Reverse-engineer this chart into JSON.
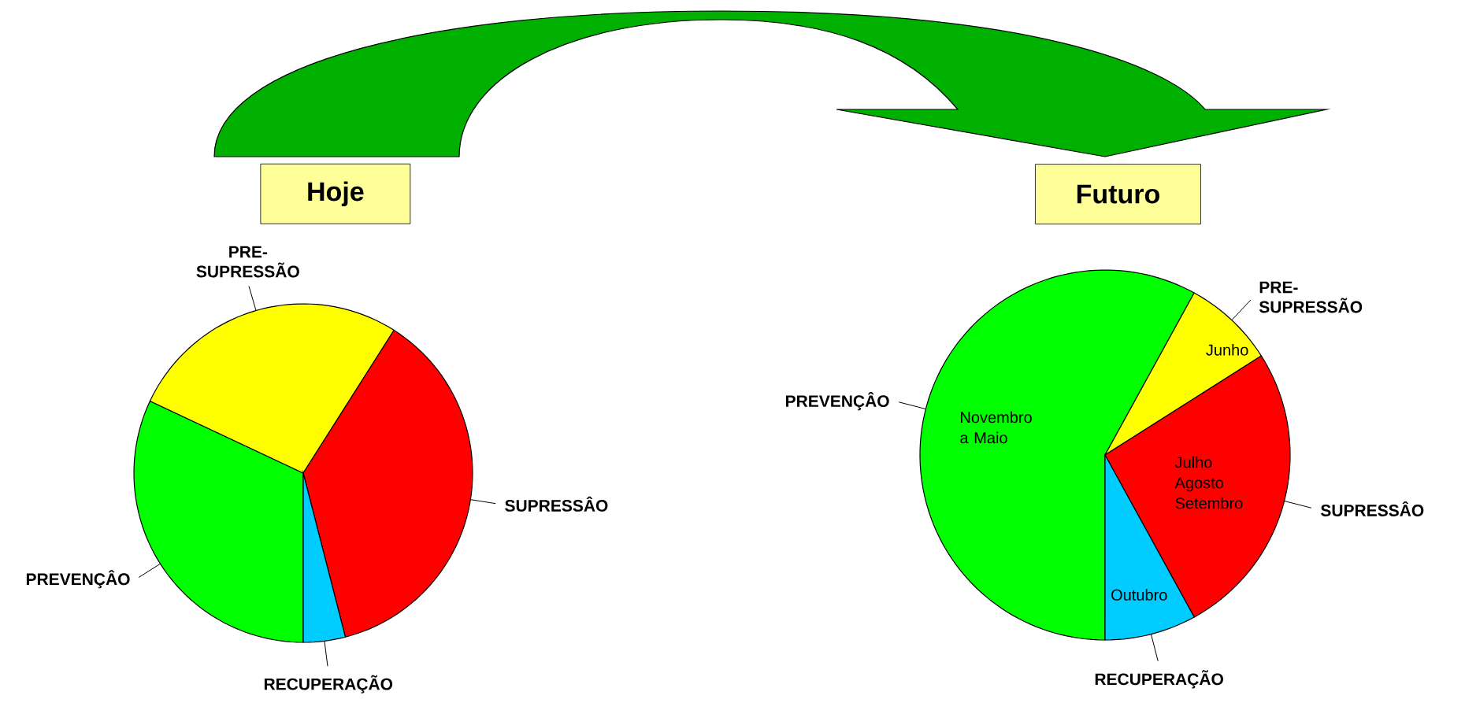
{
  "chart_data": [
    {
      "type": "pie",
      "title": "Hoje",
      "categories": [
        "PREVENÇÂO",
        "PRE-SUPRESSÃO",
        "SUPRESSÂO",
        "RECUPERAÇÃO"
      ],
      "values": [
        32,
        27,
        37,
        4
      ],
      "colors": [
        "#00ff00",
        "#ffff00",
        "#ff0000",
        "#00ccff"
      ]
    },
    {
      "type": "pie",
      "title": "Futuro",
      "categories": [
        "PREVENÇÂO",
        "PRE-SUPRESSÃO",
        "SUPRESSÂO",
        "RECUPERAÇÃO"
      ],
      "values": [
        58,
        8,
        26,
        8
      ],
      "colors": [
        "#00ff00",
        "#ffff00",
        "#ff0000",
        "#00ccff"
      ],
      "value_labels": [
        "Novembro a Maio",
        "Junho",
        "Julho Agosto Setembro",
        "Outubro"
      ]
    }
  ]
}
